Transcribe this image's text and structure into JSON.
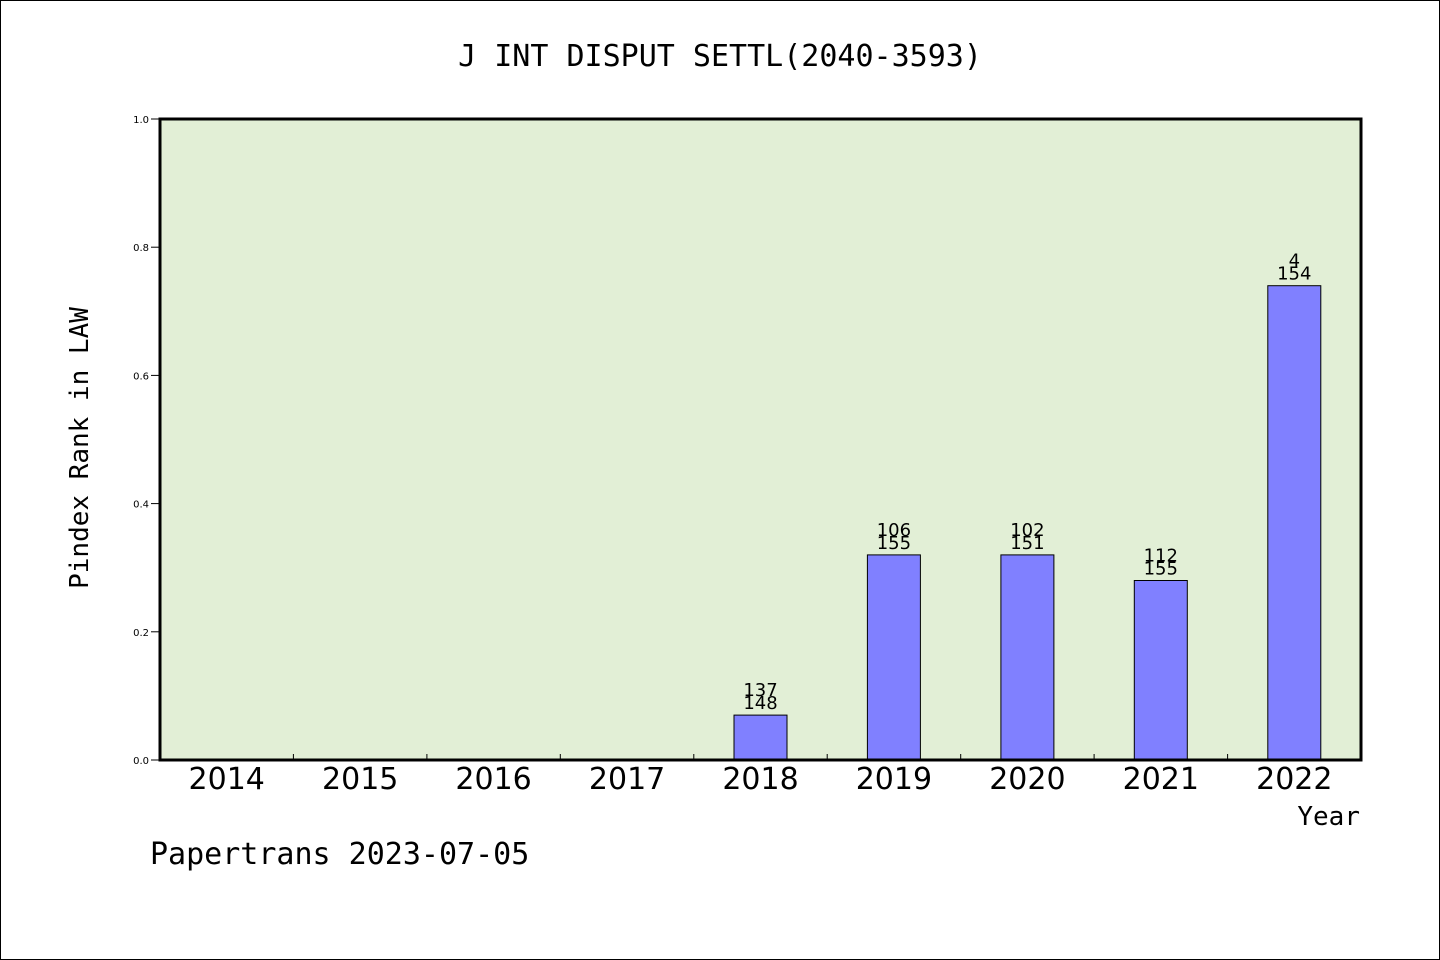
{
  "chart_data": {
    "type": "bar",
    "title": "J INT DISPUT SETTL(2040-3593)",
    "xlabel": "Year",
    "ylabel": "Pindex Rank in LAW",
    "categories": [
      "2014",
      "2015",
      "2016",
      "2017",
      "2018",
      "2019",
      "2020",
      "2021",
      "2022"
    ],
    "values": [
      0,
      0,
      0,
      0,
      0.07,
      0.32,
      0.32,
      0.28,
      0.74
    ],
    "label_top": [
      "",
      "",
      "",
      "",
      "137",
      "106",
      "102",
      "112",
      "4"
    ],
    "label_bottom": [
      "",
      "",
      "",
      "",
      "148",
      "155",
      "151",
      "155",
      "154"
    ],
    "ylim": [
      0,
      1.0
    ],
    "yticks": [
      "0.0",
      "0.2",
      "0.4",
      "0.6",
      "0.8",
      "1.0"
    ],
    "grid": false,
    "colors": {
      "plot_bg": "#e2efd6",
      "bar": "#8080ff",
      "axis": "#000000"
    }
  },
  "footer": {
    "text": "Papertrans 2023-07-05"
  }
}
